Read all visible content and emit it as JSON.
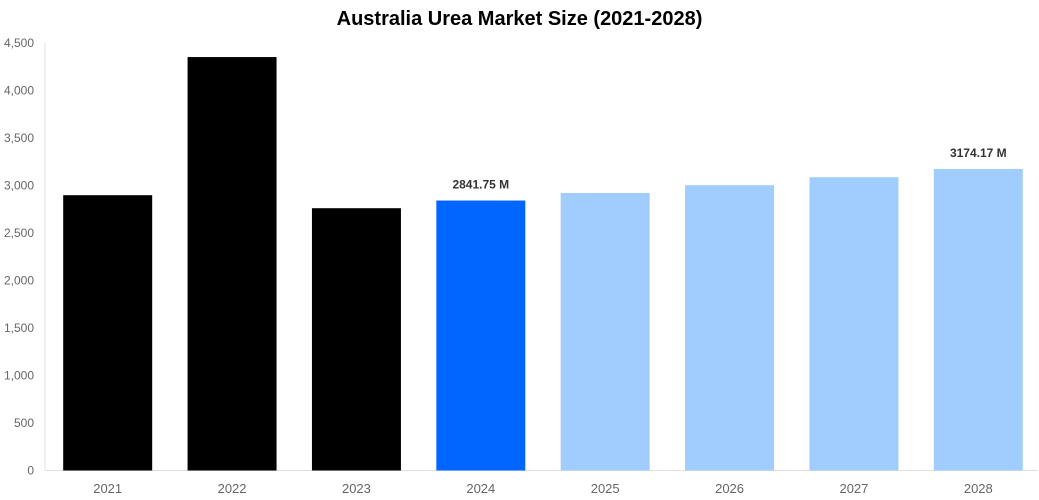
{
  "chart_data": {
    "type": "bar",
    "title": "Australia Urea Market Size (2021-2028)",
    "xlabel": "",
    "ylabel": "",
    "ylim": [
      0,
      4500
    ],
    "yticks": [
      0,
      500,
      1000,
      1500,
      2000,
      2500,
      3000,
      3500,
      4000,
      4500
    ],
    "ytick_labels": [
      "0",
      "500",
      "1,000",
      "1,500",
      "2,000",
      "2,500",
      "3,000",
      "3,500",
      "4,000",
      "4,500"
    ],
    "grid": false,
    "legend": null,
    "categories": [
      "2021",
      "2022",
      "2023",
      "2024",
      "2025",
      "2026",
      "2027",
      "2028"
    ],
    "values": [
      2898,
      4352,
      2761,
      2841.75,
      2921.3,
      3003.1,
      3087.2,
      3174.17
    ],
    "colors": [
      "#000000",
      "#000000",
      "#000000",
      "#0066ff",
      "#a0cdfd",
      "#a0cdfd",
      "#a0cdfd",
      "#a0cdfd"
    ],
    "data_labels": [
      {
        "category": "2024",
        "text": "2841.75 M"
      },
      {
        "category": "2028",
        "text": "3174.17 M"
      }
    ],
    "unit": "M"
  }
}
